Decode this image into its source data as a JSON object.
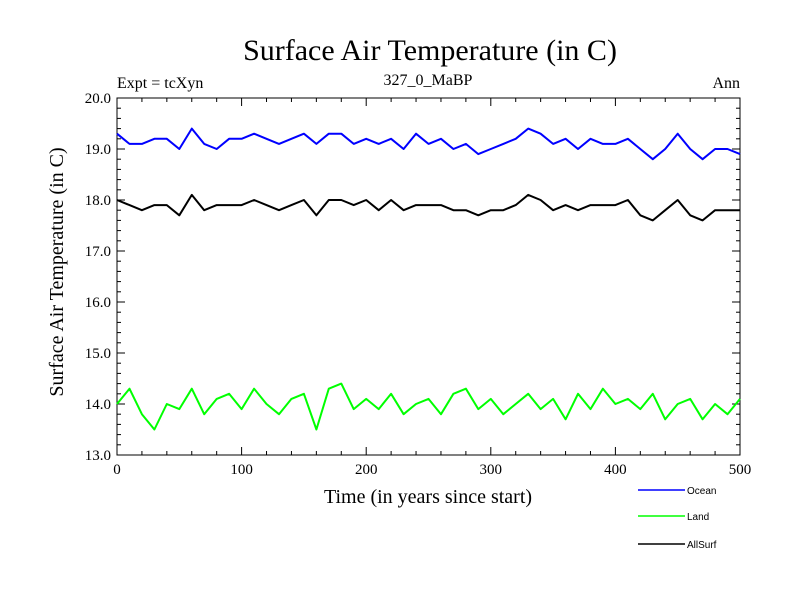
{
  "chart_data": {
    "type": "line",
    "title": "Surface Air Temperature (in C)",
    "subtitle": "327_0_MaBP",
    "left_label": "Expt = tcXyn",
    "right_label": "Ann",
    "xlabel": "Time (in years since start)",
    "ylabel": "Surface Air Temperature (in C)",
    "xlim": [
      0,
      500
    ],
    "ylim": [
      13.0,
      20.0
    ],
    "x_ticks": [
      0,
      100,
      200,
      300,
      400,
      500
    ],
    "y_ticks": [
      "13.0",
      "14.0",
      "15.0",
      "16.0",
      "17.0",
      "18.0",
      "19.0",
      "20.0"
    ],
    "grid": false,
    "legend_position": "bottom-right, below plot",
    "series": [
      {
        "name": "Ocean",
        "color": "#0000ff",
        "x": [
          0,
          10,
          20,
          30,
          40,
          50,
          60,
          70,
          80,
          90,
          100,
          110,
          120,
          130,
          140,
          150,
          160,
          170,
          180,
          190,
          200,
          210,
          220,
          230,
          240,
          250,
          260,
          270,
          280,
          290,
          300,
          310,
          320,
          330,
          340,
          350,
          360,
          370,
          380,
          390,
          400,
          410,
          420,
          430,
          440,
          450,
          460,
          470,
          480,
          490,
          500
        ],
        "values": [
          19.3,
          19.1,
          19.1,
          19.2,
          19.2,
          19.0,
          19.4,
          19.1,
          19.0,
          19.2,
          19.2,
          19.3,
          19.2,
          19.1,
          19.2,
          19.3,
          19.1,
          19.3,
          19.3,
          19.1,
          19.2,
          19.1,
          19.2,
          19.0,
          19.3,
          19.1,
          19.2,
          19.0,
          19.1,
          18.9,
          19.0,
          19.1,
          19.2,
          19.4,
          19.3,
          19.1,
          19.2,
          19.0,
          19.2,
          19.1,
          19.1,
          19.2,
          19.0,
          18.8,
          19.0,
          19.3,
          19.0,
          18.8,
          19.0,
          19.0,
          18.9
        ]
      },
      {
        "name": "Land",
        "color": "#00ff00",
        "x": [
          0,
          10,
          20,
          30,
          40,
          50,
          60,
          70,
          80,
          90,
          100,
          110,
          120,
          130,
          140,
          150,
          160,
          170,
          180,
          190,
          200,
          210,
          220,
          230,
          240,
          250,
          260,
          270,
          280,
          290,
          300,
          310,
          320,
          330,
          340,
          350,
          360,
          370,
          380,
          390,
          400,
          410,
          420,
          430,
          440,
          450,
          460,
          470,
          480,
          490,
          500
        ],
        "values": [
          14.0,
          14.3,
          13.8,
          13.5,
          14.0,
          13.9,
          14.3,
          13.8,
          14.1,
          14.2,
          13.9,
          14.3,
          14.0,
          13.8,
          14.1,
          14.2,
          13.5,
          14.3,
          14.4,
          13.9,
          14.1,
          13.9,
          14.2,
          13.8,
          14.0,
          14.1,
          13.8,
          14.2,
          14.3,
          13.9,
          14.1,
          13.8,
          14.0,
          14.2,
          13.9,
          14.1,
          13.7,
          14.2,
          13.9,
          14.3,
          14.0,
          14.1,
          13.9,
          14.2,
          13.7,
          14.0,
          14.1,
          13.7,
          14.0,
          13.8,
          14.1
        ]
      },
      {
        "name": "AllSurf",
        "color": "#000000",
        "x": [
          0,
          10,
          20,
          30,
          40,
          50,
          60,
          70,
          80,
          90,
          100,
          110,
          120,
          130,
          140,
          150,
          160,
          170,
          180,
          190,
          200,
          210,
          220,
          230,
          240,
          250,
          260,
          270,
          280,
          290,
          300,
          310,
          320,
          330,
          340,
          350,
          360,
          370,
          380,
          390,
          400,
          410,
          420,
          430,
          440,
          450,
          460,
          470,
          480,
          490,
          500
        ],
        "values": [
          18.0,
          17.9,
          17.8,
          17.9,
          17.9,
          17.7,
          18.1,
          17.8,
          17.9,
          17.9,
          17.9,
          18.0,
          17.9,
          17.8,
          17.9,
          18.0,
          17.7,
          18.0,
          18.0,
          17.9,
          18.0,
          17.8,
          18.0,
          17.8,
          17.9,
          17.9,
          17.9,
          17.8,
          17.8,
          17.7,
          17.8,
          17.8,
          17.9,
          18.1,
          18.0,
          17.8,
          17.9,
          17.8,
          17.9,
          17.9,
          17.9,
          18.0,
          17.7,
          17.6,
          17.8,
          18.0,
          17.7,
          17.6,
          17.8,
          17.8,
          17.8
        ]
      }
    ]
  }
}
